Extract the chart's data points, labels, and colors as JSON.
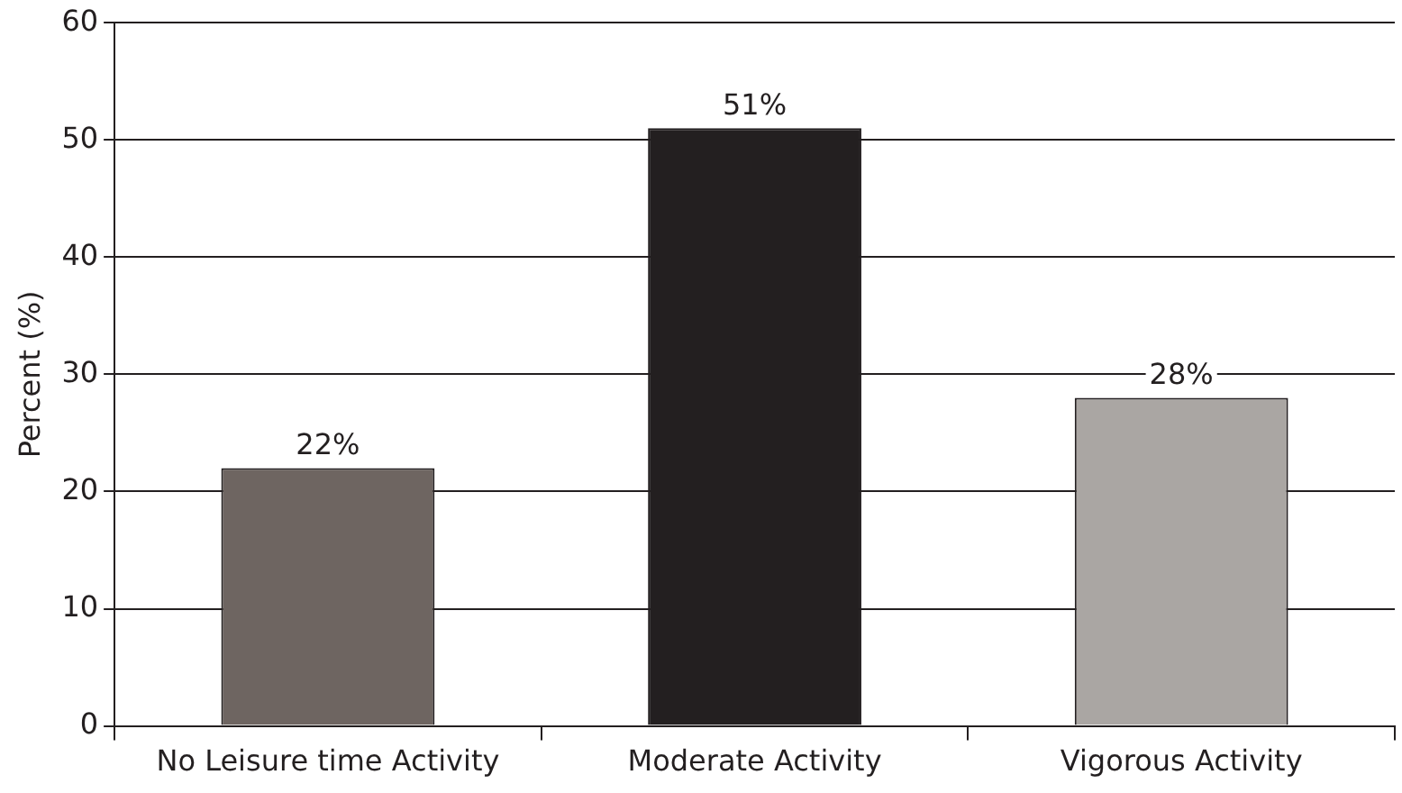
{
  "chart_data": {
    "type": "bar",
    "ylabel": "Percent (%)",
    "categories": [
      "No Leisure time Activity",
      "Moderate Activity",
      "Vigorous Activity"
    ],
    "values": [
      22,
      51,
      28
    ],
    "value_labels": [
      "22%",
      "51%",
      "28%"
    ],
    "colors": [
      "#6e6561",
      "#231f20",
      "#aaa6a3"
    ],
    "ylim": [
      0,
      60
    ],
    "yticks": [
      0,
      10,
      20,
      30,
      40,
      50,
      60
    ],
    "grid": "y",
    "legend": false
  }
}
